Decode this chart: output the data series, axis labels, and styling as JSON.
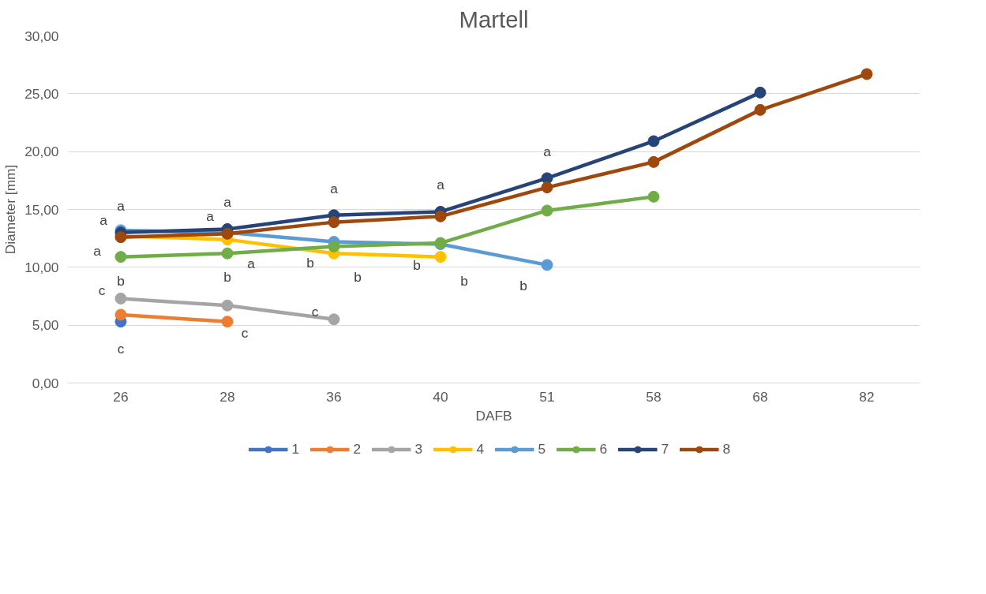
{
  "chart_data": {
    "type": "line",
    "title": "Martell",
    "xlabel": "DAFB",
    "ylabel": "Diameter [mm]",
    "categories": [
      "26",
      "28",
      "36",
      "40",
      "51",
      "58",
      "68",
      "82"
    ],
    "ylim": [
      0,
      30
    ],
    "yticks": [
      {
        "value": 0,
        "label": "0,00"
      },
      {
        "value": 5,
        "label": "5,00"
      },
      {
        "value": 10,
        "label": "10,00"
      },
      {
        "value": 15,
        "label": "15,00"
      },
      {
        "value": 20,
        "label": "20,00"
      },
      {
        "value": 25,
        "label": "25,00"
      },
      {
        "value": 30,
        "label": "30,00"
      }
    ],
    "grid": "y",
    "legend": "bottom",
    "marker": "circle",
    "line_style": "solid",
    "series": [
      {
        "name": "1",
        "color": "#4472c4",
        "values": [
          5.3,
          null,
          null,
          null,
          null,
          null,
          null,
          null
        ],
        "value_labels": [
          "c",
          null,
          null,
          null,
          null,
          null,
          null,
          null
        ]
      },
      {
        "name": "2",
        "color": "#ed7d31",
        "values": [
          5.9,
          5.3,
          null,
          null,
          null,
          null,
          null,
          null
        ],
        "value_labels": [
          null,
          "c",
          null,
          null,
          null,
          null,
          null,
          null
        ]
      },
      {
        "name": "3",
        "color": "#a5a5a5",
        "values": [
          7.3,
          6.7,
          5.5,
          null,
          null,
          null,
          null,
          null
        ],
        "value_labels": [
          "c",
          null,
          "c",
          null,
          null,
          null,
          null,
          null
        ]
      },
      {
        "name": "4",
        "color": "#ffc000",
        "values": [
          12.7,
          12.4,
          11.2,
          10.9,
          null,
          null,
          null,
          null
        ],
        "value_labels": [
          null,
          "a",
          "b",
          "b",
          null,
          null,
          null,
          null
        ]
      },
      {
        "name": "5",
        "color": "#5b9bd5",
        "values": [
          13.2,
          13.0,
          12.2,
          12.0,
          10.2,
          null,
          null,
          null
        ],
        "value_labels": [
          "a",
          null,
          "b",
          "b",
          "b",
          null,
          null,
          null
        ]
      },
      {
        "name": "6",
        "color": "#70ad47",
        "values": [
          10.9,
          11.2,
          11.8,
          12.1,
          14.9,
          16.1,
          null,
          null
        ],
        "value_labels": [
          "b",
          "b",
          null,
          null,
          null,
          null,
          null,
          null
        ]
      },
      {
        "name": "7",
        "color": "#264478",
        "values": [
          13.0,
          13.3,
          14.5,
          14.8,
          17.7,
          20.9,
          25.1,
          null
        ],
        "value_labels": [
          "a",
          "a",
          "a",
          "a",
          "a",
          null,
          null,
          null
        ]
      },
      {
        "name": "8",
        "color": "#9e480e",
        "values": [
          12.6,
          12.9,
          13.9,
          14.4,
          16.9,
          19.1,
          23.6,
          26.7
        ],
        "value_labels": [
          "a",
          "a",
          null,
          null,
          null,
          null,
          null,
          null
        ]
      }
    ]
  }
}
